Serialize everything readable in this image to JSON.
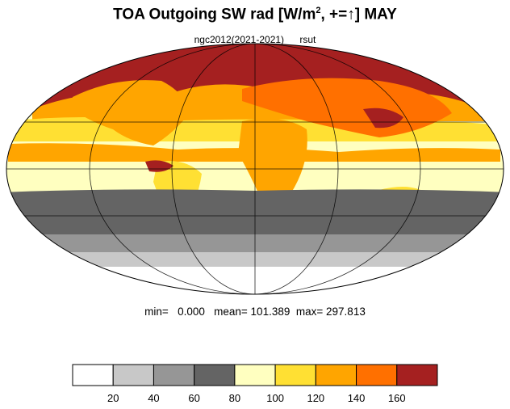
{
  "title_main": "TOA Outgoing SW rad [W/m",
  "title_sup": "2",
  "title_tail": ", +=↑] MAY",
  "subtitle": {
    "left": "ngc2012(2021-2021)",
    "right": "rsut"
  },
  "stats": {
    "min_label": "min=",
    "min": "0.000",
    "mean_label": "mean=",
    "mean": "101.389",
    "max_label": "max=",
    "max": "297.813"
  },
  "colorbar": {
    "colors": [
      "#ffffff",
      "#c8c8c8",
      "#969696",
      "#646464",
      "#ffffc0",
      "#ffe033",
      "#ffa500",
      "#ff7000",
      "#a52020"
    ],
    "ticks": [
      "20",
      "40",
      "60",
      "80",
      "100",
      "120",
      "140",
      "160"
    ]
  },
  "map_colors": {
    "ocean_land_base": "#ffffc0",
    "high_band": "#a52020",
    "orange": "#ffa500",
    "yellow": "#ffe033",
    "dark_gray": "#646464",
    "mid_gray": "#969696",
    "light_gray": "#c8c8c8"
  }
}
